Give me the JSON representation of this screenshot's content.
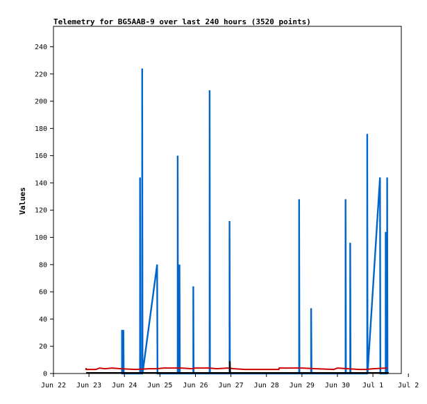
{
  "chart_data": {
    "type": "line",
    "title": "Telemetry for BG5AAB-9 over last 240 hours (3520 points)",
    "xlabel": "",
    "ylabel": "Values",
    "x_ticks": [
      "Jun 22",
      "Jun 23",
      "Jun 24",
      "Jun 25",
      "Jun 26",
      "Jun 27",
      "Jun 28",
      "Jun 29",
      "Jun 30",
      "Jul 1",
      "Jul 2"
    ],
    "y_ticks": [
      0,
      20,
      40,
      60,
      80,
      100,
      120,
      140,
      160,
      180,
      200,
      220,
      240
    ],
    "xlim_days": [
      0,
      9.8
    ],
    "ylim": [
      0,
      255
    ],
    "grid": false,
    "legend": "none",
    "series": [
      {
        "color": "#0066cc",
        "points": [
          [
            1.93,
            0
          ],
          [
            1.93,
            32
          ],
          [
            1.94,
            0
          ],
          [
            1.97,
            0
          ],
          [
            1.97,
            32
          ],
          [
            1.98,
            0
          ],
          [
            2.44,
            0
          ],
          [
            2.44,
            144
          ],
          [
            2.45,
            0
          ],
          [
            2.5,
            0
          ],
          [
            2.5,
            224
          ],
          [
            2.51,
            0
          ],
          [
            2.92,
            80
          ],
          [
            2.93,
            0
          ],
          [
            3.5,
            0
          ],
          [
            3.5,
            160
          ],
          [
            3.51,
            0
          ],
          [
            3.55,
            0
          ],
          [
            3.55,
            80
          ],
          [
            3.56,
            0
          ],
          [
            3.94,
            0
          ],
          [
            3.94,
            64
          ],
          [
            3.95,
            0
          ],
          [
            4.4,
            0
          ],
          [
            4.4,
            208
          ],
          [
            4.41,
            0
          ],
          [
            4.96,
            0
          ],
          [
            4.96,
            112
          ],
          [
            4.97,
            0
          ],
          [
            6.92,
            0
          ],
          [
            6.92,
            128
          ],
          [
            6.93,
            0
          ],
          [
            7.26,
            0
          ],
          [
            7.26,
            48
          ],
          [
            7.27,
            0
          ],
          [
            8.23,
            0
          ],
          [
            8.23,
            128
          ],
          [
            8.24,
            0
          ],
          [
            8.36,
            0
          ],
          [
            8.36,
            96
          ],
          [
            8.37,
            0
          ],
          [
            8.84,
            0
          ],
          [
            8.84,
            176
          ],
          [
            8.85,
            0
          ],
          [
            9.2,
            144
          ],
          [
            9.21,
            0
          ],
          [
            9.36,
            0
          ],
          [
            9.36,
            104
          ],
          [
            9.37,
            0
          ],
          [
            9.4,
            0
          ],
          [
            9.4,
            144
          ],
          [
            9.41,
            0
          ]
        ]
      },
      {
        "color": "#cc0000",
        "points": [
          [
            0.92,
            4
          ],
          [
            0.92,
            3
          ],
          [
            1.2,
            3
          ],
          [
            1.3,
            4
          ],
          [
            1.45,
            3.5
          ],
          [
            1.65,
            4
          ],
          [
            1.9,
            3.5
          ],
          [
            2.3,
            3
          ],
          [
            2.7,
            3.5
          ],
          [
            2.9,
            3.5
          ],
          [
            3.1,
            4
          ],
          [
            3.6,
            4
          ],
          [
            3.9,
            3.5
          ],
          [
            4.0,
            4
          ],
          [
            4.4,
            4
          ],
          [
            4.6,
            3.5
          ],
          [
            4.9,
            4
          ],
          [
            5.1,
            3.5
          ],
          [
            5.4,
            3
          ],
          [
            6.0,
            3
          ],
          [
            6.35,
            3
          ],
          [
            6.36,
            4
          ],
          [
            7.0,
            4
          ],
          [
            7.4,
            3.5
          ],
          [
            7.9,
            3
          ],
          [
            8.0,
            4
          ],
          [
            8.3,
            3.5
          ],
          [
            8.6,
            3
          ],
          [
            8.8,
            3
          ],
          [
            9.0,
            3.5
          ],
          [
            9.4,
            4
          ]
        ]
      },
      {
        "color": "#000000",
        "points": [
          [
            0.92,
            0.5
          ],
          [
            3.0,
            0.5
          ],
          [
            4.97,
            0.5
          ],
          [
            4.97,
            9
          ],
          [
            4.98,
            0.5
          ],
          [
            9.45,
            0.5
          ]
        ]
      }
    ]
  }
}
